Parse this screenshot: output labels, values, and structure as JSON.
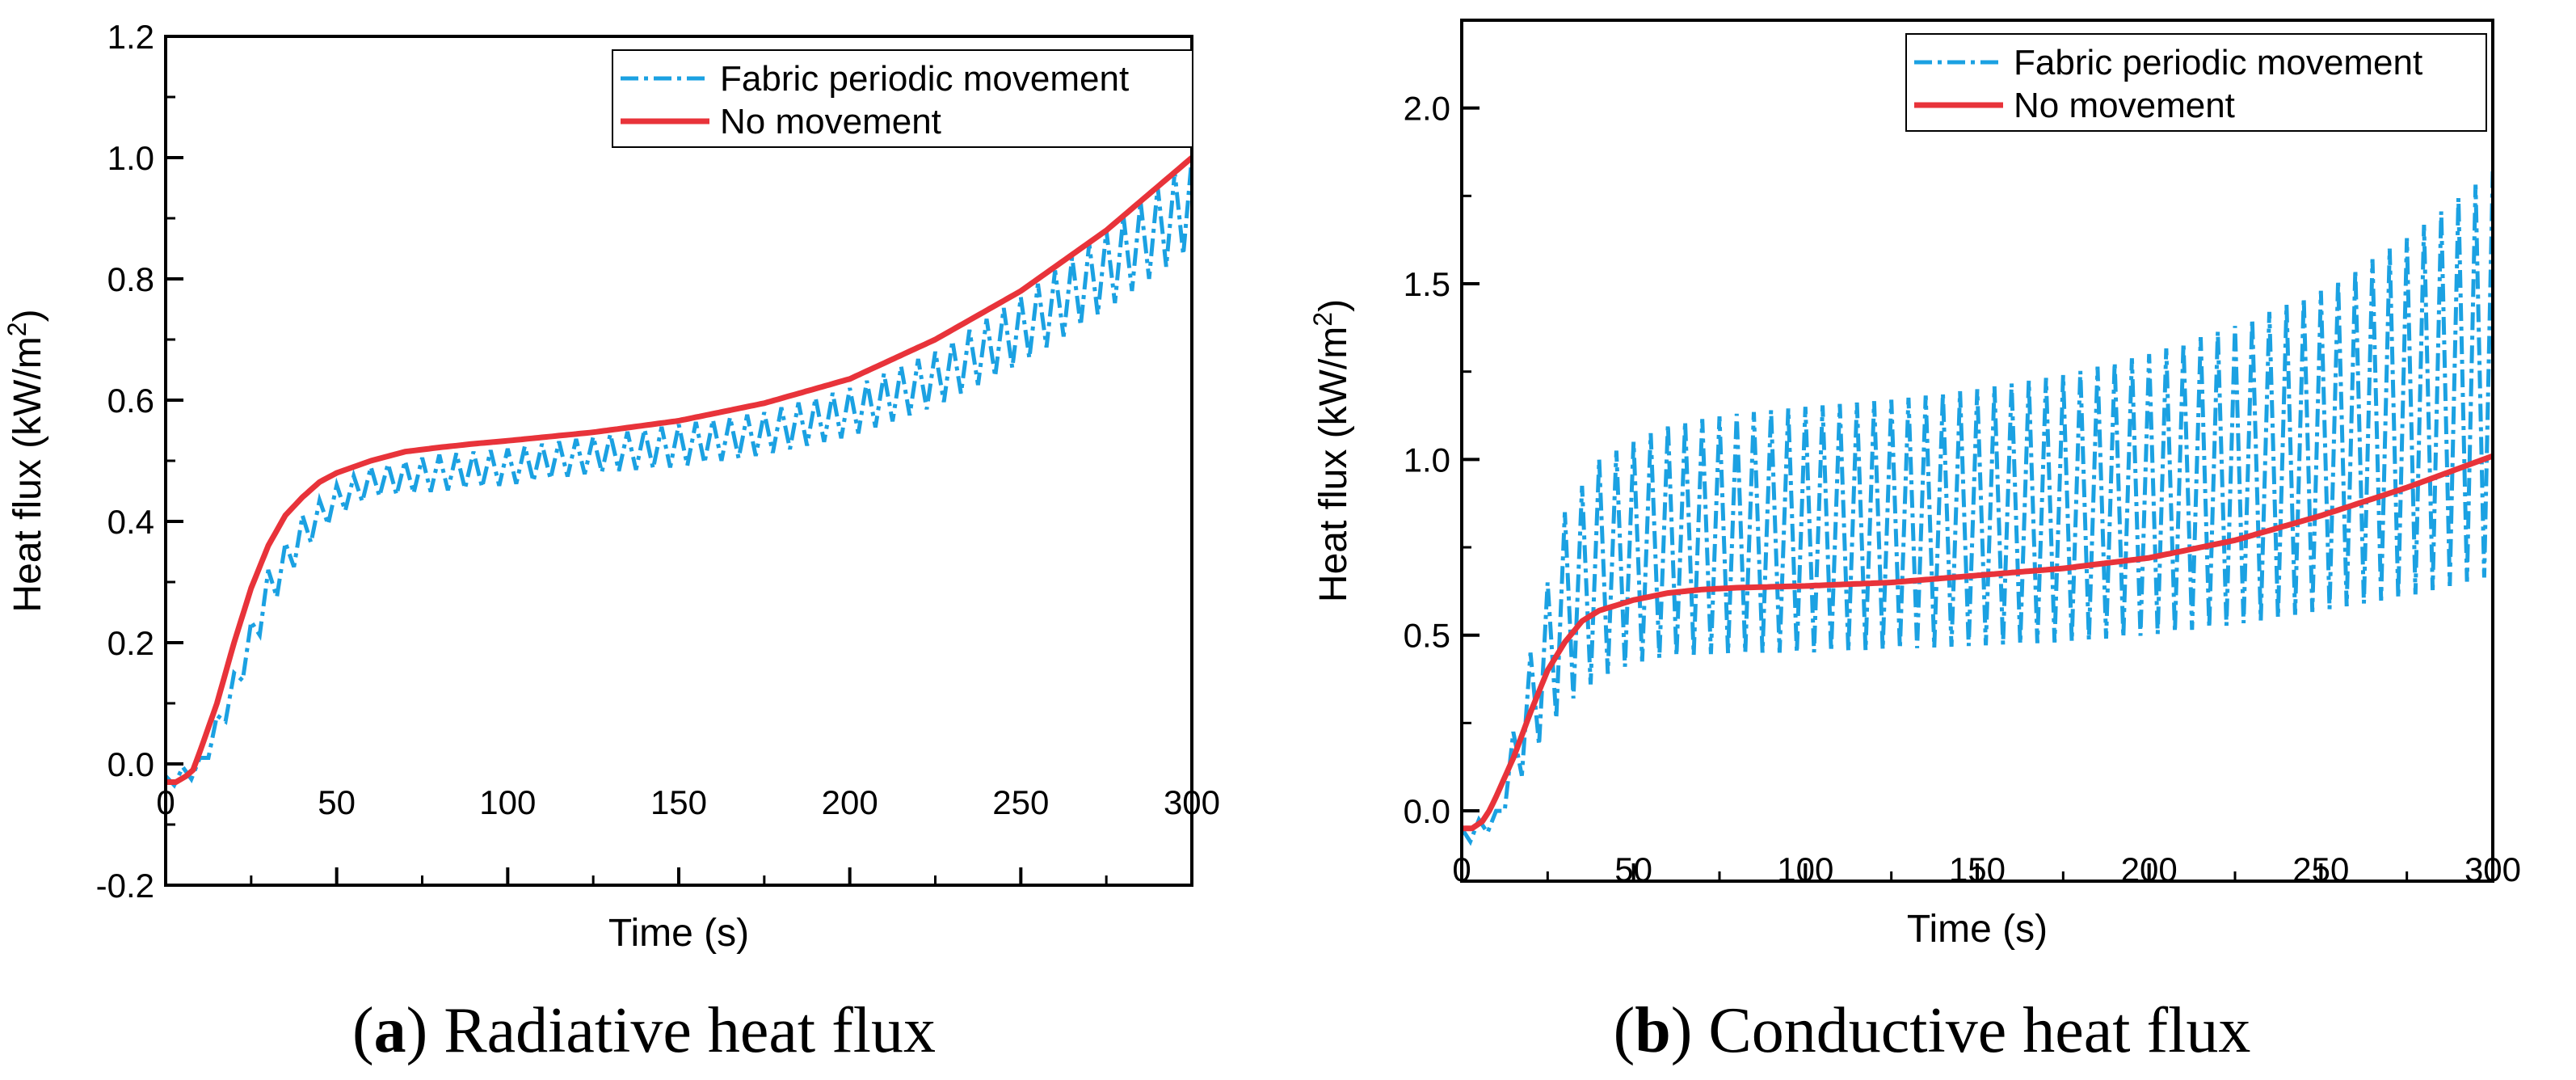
{
  "colors": {
    "fabric": "#1ba1e2",
    "no_movement": "#e8333a",
    "axis": "#000000"
  },
  "chart_data": [
    {
      "type": "line",
      "caption_letter": "a",
      "caption_text": "Radiative heat flux",
      "xlabel": "Time (s)",
      "ylabel_main": "Heat flux (kW/m",
      "ylabel_sup": "2",
      "ylabel_end": ")",
      "xlim": [
        0,
        300
      ],
      "ylim": [
        -0.2,
        1.2
      ],
      "xticks": [
        "0",
        "50",
        "100",
        "150",
        "200",
        "250",
        "300"
      ],
      "yticks": [
        "-0.2",
        "0.0",
        "0.2",
        "0.4",
        "0.6",
        "0.8",
        "1.0",
        "1.2"
      ],
      "series": [
        {
          "name": "Fabric periodic movement",
          "style": "dash-dot",
          "oscillation_period": 5,
          "upper": [
            [
              0,
              -0.02
            ],
            [
              10,
              0.01
            ],
            [
              20,
              0.15
            ],
            [
              30,
              0.32
            ],
            [
              40,
              0.41
            ],
            [
              50,
              0.46
            ],
            [
              60,
              0.49
            ],
            [
              80,
              0.51
            ],
            [
              100,
              0.52
            ],
            [
              125,
              0.54
            ],
            [
              150,
              0.56
            ],
            [
              175,
              0.58
            ],
            [
              200,
              0.62
            ],
            [
              225,
              0.68
            ],
            [
              250,
              0.77
            ],
            [
              275,
              0.88
            ],
            [
              300,
              1.0
            ]
          ],
          "lower": [
            [
              0,
              -0.04
            ],
            [
              10,
              -0.02
            ],
            [
              20,
              0.1
            ],
            [
              30,
              0.25
            ],
            [
              40,
              0.35
            ],
            [
              50,
              0.41
            ],
            [
              60,
              0.44
            ],
            [
              80,
              0.45
            ],
            [
              100,
              0.46
            ],
            [
              125,
              0.48
            ],
            [
              150,
              0.49
            ],
            [
              175,
              0.51
            ],
            [
              200,
              0.54
            ],
            [
              225,
              0.59
            ],
            [
              250,
              0.66
            ],
            [
              275,
              0.75
            ],
            [
              300,
              0.85
            ]
          ]
        },
        {
          "name": "No movement",
          "style": "solid",
          "points": [
            [
              0,
              -0.03
            ],
            [
              3,
              -0.03
            ],
            [
              6,
              -0.02
            ],
            [
              8,
              -0.01
            ],
            [
              10,
              0.02
            ],
            [
              15,
              0.1
            ],
            [
              20,
              0.2
            ],
            [
              25,
              0.29
            ],
            [
              30,
              0.36
            ],
            [
              35,
              0.41
            ],
            [
              40,
              0.44
            ],
            [
              45,
              0.465
            ],
            [
              50,
              0.48
            ],
            [
              60,
              0.5
            ],
            [
              70,
              0.515
            ],
            [
              80,
              0.522
            ],
            [
              90,
              0.528
            ],
            [
              100,
              0.533
            ],
            [
              125,
              0.547
            ],
            [
              150,
              0.566
            ],
            [
              175,
              0.595
            ],
            [
              200,
              0.635
            ],
            [
              225,
              0.7
            ],
            [
              250,
              0.78
            ],
            [
              275,
              0.88
            ],
            [
              300,
              1.0
            ]
          ]
        }
      ]
    },
    {
      "type": "line",
      "caption_letter": "b",
      "caption_text": "Conductive heat flux",
      "xlabel": "Time (s)",
      "ylabel_main": "Heat flux (kW/m",
      "ylabel_sup": "2",
      "ylabel_end": ")",
      "xlim": [
        0,
        300
      ],
      "ylim": [
        -0.2,
        2.25
      ],
      "xticks": [
        "0",
        "50",
        "100",
        "150",
        "200",
        "250",
        "300"
      ],
      "yticks": [
        "0.0",
        "0.5",
        "1.0",
        "1.5",
        "2.0"
      ],
      "series": [
        {
          "name": "Fabric periodic movement",
          "style": "dash-dot",
          "oscillation_period": 5,
          "upper": [
            [
              0,
              -0.05
            ],
            [
              10,
              0.0
            ],
            [
              20,
              0.45
            ],
            [
              30,
              0.85
            ],
            [
              40,
              1.0
            ],
            [
              50,
              1.05
            ],
            [
              60,
              1.1
            ],
            [
              80,
              1.13
            ],
            [
              100,
              1.15
            ],
            [
              125,
              1.17
            ],
            [
              150,
              1.2
            ],
            [
              175,
              1.24
            ],
            [
              200,
              1.3
            ],
            [
              225,
              1.38
            ],
            [
              250,
              1.48
            ],
            [
              275,
              1.63
            ],
            [
              300,
              1.82
            ]
          ],
          "lower": [
            [
              0,
              -0.1
            ],
            [
              10,
              -0.05
            ],
            [
              20,
              0.15
            ],
            [
              30,
              0.3
            ],
            [
              40,
              0.38
            ],
            [
              50,
              0.42
            ],
            [
              60,
              0.44
            ],
            [
              80,
              0.45
            ],
            [
              100,
              0.45
            ],
            [
              125,
              0.46
            ],
            [
              150,
              0.47
            ],
            [
              175,
              0.48
            ],
            [
              200,
              0.5
            ],
            [
              225,
              0.53
            ],
            [
              250,
              0.57
            ],
            [
              275,
              0.61
            ],
            [
              300,
              0.67
            ]
          ]
        },
        {
          "name": "No movement",
          "style": "solid",
          "points": [
            [
              0,
              -0.05
            ],
            [
              3,
              -0.05
            ],
            [
              6,
              -0.03
            ],
            [
              8,
              0.0
            ],
            [
              10,
              0.04
            ],
            [
              15,
              0.15
            ],
            [
              20,
              0.28
            ],
            [
              25,
              0.4
            ],
            [
              30,
              0.48
            ],
            [
              35,
              0.54
            ],
            [
              40,
              0.57
            ],
            [
              50,
              0.6
            ],
            [
              60,
              0.62
            ],
            [
              70,
              0.63
            ],
            [
              80,
              0.635
            ],
            [
              100,
              0.64
            ],
            [
              125,
              0.65
            ],
            [
              150,
              0.67
            ],
            [
              175,
              0.69
            ],
            [
              200,
              0.72
            ],
            [
              225,
              0.77
            ],
            [
              250,
              0.84
            ],
            [
              275,
              0.92
            ],
            [
              300,
              1.01
            ]
          ]
        }
      ]
    }
  ]
}
